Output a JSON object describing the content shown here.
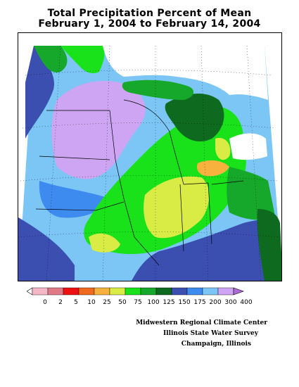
{
  "title": {
    "line1": "Total Precipitation Percent of Mean",
    "line2": "February 1, 2004 to February 14, 2004"
  },
  "legend": {
    "bins": [
      {
        "label": "0",
        "color": "#ffffff"
      },
      {
        "label": "2",
        "color": "#f5b6c8"
      },
      {
        "label": "5",
        "color": "#e07a86"
      },
      {
        "label": "10",
        "color": "#ee1111"
      },
      {
        "label": "25",
        "color": "#f06a1e"
      },
      {
        "label": "50",
        "color": "#f6b23c"
      },
      {
        "label": "75",
        "color": "#d9ec45"
      },
      {
        "label": "100",
        "color": "#19e21a"
      },
      {
        "label": "125",
        "color": "#16a82b"
      },
      {
        "label": "150",
        "color": "#0d6a1e"
      },
      {
        "label": "175",
        "color": "#3b4fb0"
      },
      {
        "label": "200",
        "color": "#3e8bf0"
      },
      {
        "label": "300",
        "color": "#7cc6f6"
      },
      {
        "label": "400",
        "color": "#cda5f2"
      }
    ],
    "above_color": "#b06ad6"
  },
  "credits": {
    "line1": "Midwestern Regional Climate Center",
    "line2": "Illinois State Water Survey",
    "line3": "Champaign, Illinois"
  }
}
